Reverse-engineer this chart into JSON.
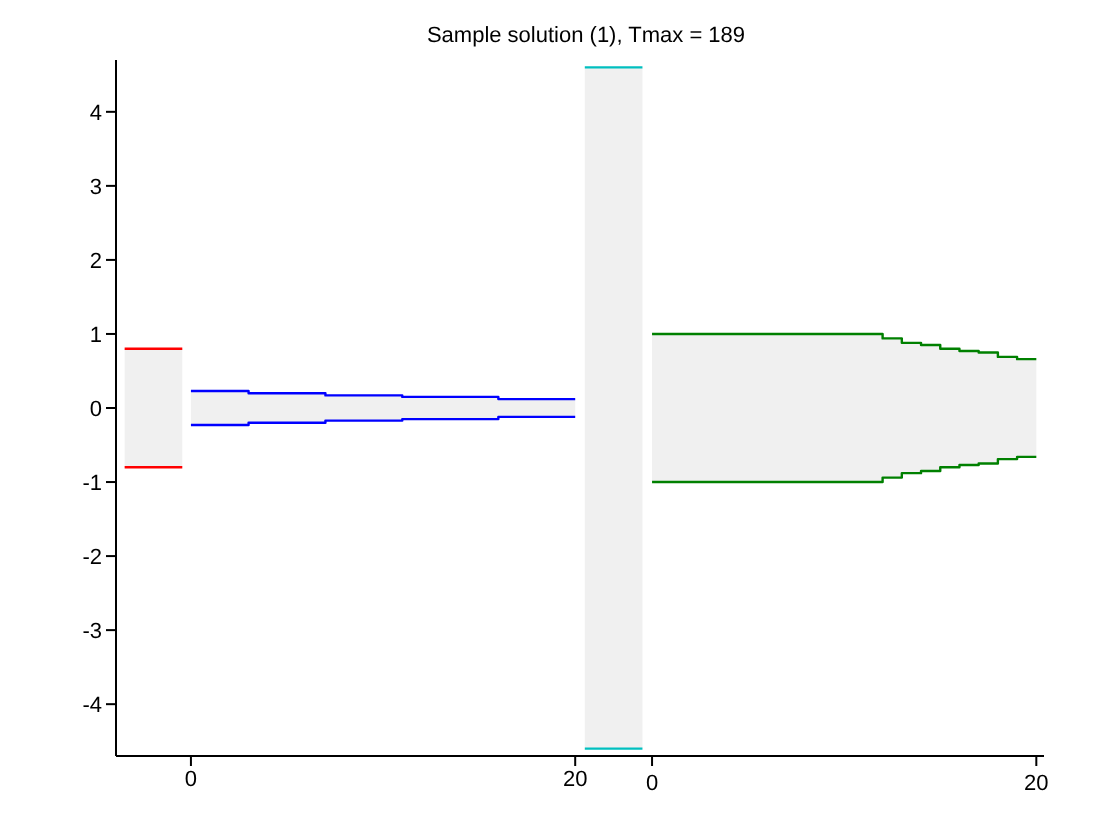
{
  "chart_data": {
    "type": "area",
    "title": "Sample solution (1), Tmax = 189",
    "series": [
      {
        "type": "area",
        "color": "#ff0000",
        "x": [
          -3.45,
          -0.45
        ],
        "values": [
          0.8,
          0.8
        ]
      },
      {
        "type": "area",
        "color": "#ff0000",
        "x": [
          -3.45,
          -0.45
        ],
        "values": [
          -0.8,
          -0.8
        ]
      },
      {
        "type": "area",
        "color": "#0000ff",
        "x": [
          0,
          3,
          3,
          7,
          7,
          11,
          11,
          16,
          16,
          20
        ],
        "values": [
          0.23,
          0.23,
          0.2,
          0.2,
          0.17,
          0.17,
          0.15,
          0.15,
          0.12,
          0.12
        ]
      },
      {
        "type": "area",
        "color": "#0000ff",
        "x": [
          0,
          3,
          3,
          7,
          7,
          11,
          11,
          16,
          16,
          20
        ],
        "values": [
          -0.23,
          -0.23,
          -0.2,
          -0.2,
          -0.17,
          -0.17,
          -0.15,
          -0.15,
          -0.12,
          -0.12
        ]
      },
      {
        "type": "area",
        "axis": "x2",
        "color": "#00bfbf",
        "x": [
          -3.5,
          -0.5
        ],
        "values": [
          4.6,
          4.6
        ]
      },
      {
        "type": "area",
        "axis": "x2",
        "color": "#00bfbf",
        "x": [
          -3.5,
          -0.5
        ],
        "values": [
          -4.6,
          -4.6
        ]
      },
      {
        "type": "area",
        "axis": "x2",
        "color": "#008000",
        "x": [
          0,
          12,
          12,
          13,
          13,
          14,
          14,
          15,
          15,
          16,
          16,
          17,
          17,
          18,
          18,
          19,
          19,
          20
        ],
        "values": [
          1.0,
          1.0,
          0.94,
          0.94,
          0.88,
          0.88,
          0.85,
          0.85,
          0.8,
          0.8,
          0.77,
          0.77,
          0.75,
          0.75,
          0.69,
          0.69,
          0.66,
          0.66
        ]
      },
      {
        "type": "area",
        "axis": "x2",
        "color": "#008000",
        "x": [
          0,
          12,
          12,
          13,
          13,
          14,
          14,
          15,
          15,
          16,
          16,
          17,
          17,
          18,
          18,
          19,
          19,
          20
        ],
        "values": [
          -1.0,
          -1.0,
          -0.94,
          -0.94,
          -0.88,
          -0.88,
          -0.85,
          -0.85,
          -0.8,
          -0.8,
          -0.77,
          -0.77,
          -0.75,
          -0.75,
          -0.69,
          -0.69,
          -0.66,
          -0.66
        ]
      }
    ],
    "xlim": [
      -3.9,
      44.4
    ],
    "xticks": [
      0,
      20
    ],
    "x2lim": [
      -27.9,
      20.4
    ],
    "x2ticks": [
      0,
      20
    ],
    "ylim": [
      -4.7,
      4.7
    ],
    "yticks": [
      -4,
      -3,
      -2,
      -1,
      0,
      1,
      2,
      3,
      4
    ],
    "grid": false,
    "legend": false
  }
}
